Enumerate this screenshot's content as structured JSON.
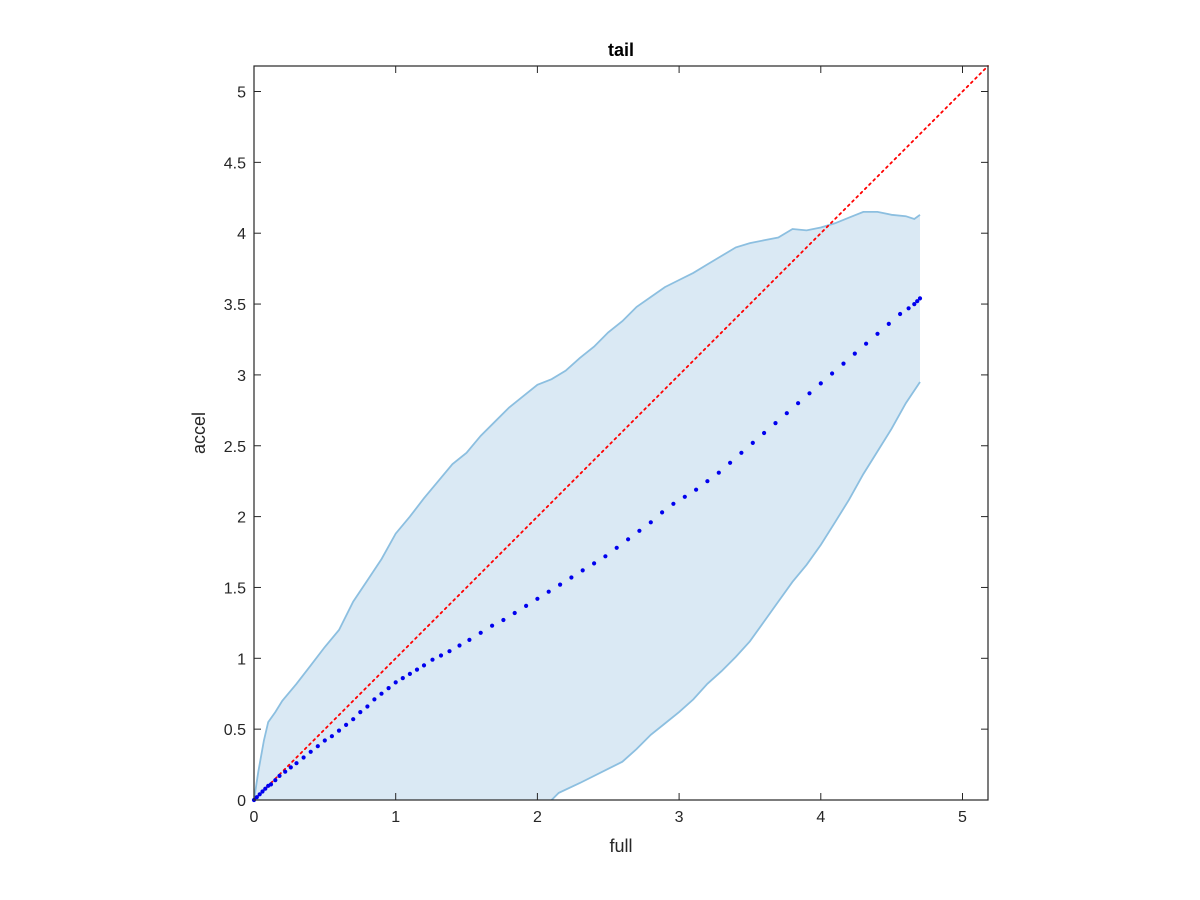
{
  "chart_data": {
    "type": "scatter",
    "title": "tail",
    "xlabel": "full",
    "ylabel": "accel",
    "xlim": [
      0,
      5.18
    ],
    "ylim": [
      0,
      5.18
    ],
    "xticks": [
      0,
      1,
      2,
      3,
      4,
      5
    ],
    "xtick_labels": [
      "0",
      "1",
      "2",
      "3",
      "4",
      "5"
    ],
    "yticks": [
      0,
      0.5,
      1,
      1.5,
      2,
      2.5,
      3,
      3.5,
      4,
      4.5,
      5
    ],
    "ytick_labels": [
      "0",
      "0.5",
      "1",
      "1.5",
      "2",
      "2.5",
      "3",
      "3.5",
      "4",
      "4.5",
      "5"
    ],
    "grid": false,
    "box": true,
    "colors": {
      "points": "#0000ee",
      "band_fill": "#dae9f4",
      "band_edge": "#8cbfe0",
      "reference_line": "#ff0000",
      "axes": "#262626"
    },
    "reference_line": {
      "x": [
        0,
        5.18
      ],
      "y": [
        0,
        5.18
      ],
      "style": "dotted"
    },
    "band": {
      "upper": [
        [
          0.0,
          0.0
        ],
        [
          0.03,
          0.2
        ],
        [
          0.07,
          0.42
        ],
        [
          0.1,
          0.55
        ],
        [
          0.15,
          0.62
        ],
        [
          0.2,
          0.7
        ],
        [
          0.3,
          0.82
        ],
        [
          0.4,
          0.95
        ],
        [
          0.5,
          1.08
        ],
        [
          0.6,
          1.2
        ],
        [
          0.7,
          1.4
        ],
        [
          0.8,
          1.55
        ],
        [
          0.9,
          1.7
        ],
        [
          1.0,
          1.88
        ],
        [
          1.1,
          2.0
        ],
        [
          1.2,
          2.13
        ],
        [
          1.3,
          2.25
        ],
        [
          1.4,
          2.37
        ],
        [
          1.5,
          2.45
        ],
        [
          1.6,
          2.57
        ],
        [
          1.7,
          2.67
        ],
        [
          1.8,
          2.77
        ],
        [
          1.9,
          2.85
        ],
        [
          2.0,
          2.93
        ],
        [
          2.1,
          2.97
        ],
        [
          2.2,
          3.03
        ],
        [
          2.3,
          3.12
        ],
        [
          2.4,
          3.2
        ],
        [
          2.5,
          3.3
        ],
        [
          2.6,
          3.38
        ],
        [
          2.7,
          3.48
        ],
        [
          2.8,
          3.55
        ],
        [
          2.9,
          3.62
        ],
        [
          3.0,
          3.67
        ],
        [
          3.1,
          3.72
        ],
        [
          3.2,
          3.78
        ],
        [
          3.3,
          3.84
        ],
        [
          3.4,
          3.9
        ],
        [
          3.5,
          3.93
        ],
        [
          3.6,
          3.95
        ],
        [
          3.7,
          3.97
        ],
        [
          3.8,
          4.03
        ],
        [
          3.9,
          4.02
        ],
        [
          4.0,
          4.04
        ],
        [
          4.1,
          4.07
        ],
        [
          4.2,
          4.11
        ],
        [
          4.3,
          4.15
        ],
        [
          4.4,
          4.15
        ],
        [
          4.5,
          4.13
        ],
        [
          4.6,
          4.12
        ],
        [
          4.66,
          4.1
        ],
        [
          4.7,
          4.13
        ]
      ],
      "lower": [
        [
          0.0,
          0.0
        ],
        [
          2.1,
          0.0
        ],
        [
          2.15,
          0.05
        ],
        [
          2.3,
          0.12
        ],
        [
          2.5,
          0.22
        ],
        [
          2.6,
          0.27
        ],
        [
          2.7,
          0.36
        ],
        [
          2.8,
          0.46
        ],
        [
          2.9,
          0.54
        ],
        [
          3.0,
          0.62
        ],
        [
          3.1,
          0.71
        ],
        [
          3.2,
          0.82
        ],
        [
          3.3,
          0.91
        ],
        [
          3.4,
          1.01
        ],
        [
          3.5,
          1.12
        ],
        [
          3.6,
          1.26
        ],
        [
          3.7,
          1.4
        ],
        [
          3.8,
          1.54
        ],
        [
          3.9,
          1.66
        ],
        [
          4.0,
          1.8
        ],
        [
          4.1,
          1.96
        ],
        [
          4.2,
          2.12
        ],
        [
          4.3,
          2.3
        ],
        [
          4.4,
          2.46
        ],
        [
          4.5,
          2.62
        ],
        [
          4.6,
          2.8
        ],
        [
          4.7,
          2.95
        ]
      ]
    },
    "series": [
      {
        "x": [
          0.0,
          0.02,
          0.04,
          0.06,
          0.08,
          0.1,
          0.12,
          0.15,
          0.18,
          0.22,
          0.26,
          0.3,
          0.35,
          0.4,
          0.45,
          0.5,
          0.55,
          0.6,
          0.65,
          0.7,
          0.75,
          0.8,
          0.85,
          0.9,
          0.95,
          1.0,
          1.05,
          1.1,
          1.15,
          1.2,
          1.26,
          1.32,
          1.38,
          1.45,
          1.52,
          1.6,
          1.68,
          1.76,
          1.84,
          1.92,
          2.0,
          2.08,
          2.16,
          2.24,
          2.32,
          2.4,
          2.48,
          2.56,
          2.64,
          2.72,
          2.8,
          2.88,
          2.96,
          3.04,
          3.12,
          3.2,
          3.28,
          3.36,
          3.44,
          3.52,
          3.6,
          3.68,
          3.76,
          3.84,
          3.92,
          4.0,
          4.08,
          4.16,
          4.24,
          4.32,
          4.4,
          4.48,
          4.56,
          4.62,
          4.66,
          4.68,
          4.7
        ],
        "y": [
          0.0,
          0.02,
          0.04,
          0.06,
          0.08,
          0.1,
          0.11,
          0.14,
          0.17,
          0.2,
          0.23,
          0.26,
          0.3,
          0.34,
          0.38,
          0.42,
          0.45,
          0.49,
          0.53,
          0.57,
          0.62,
          0.66,
          0.71,
          0.75,
          0.79,
          0.83,
          0.86,
          0.89,
          0.92,
          0.95,
          0.99,
          1.02,
          1.05,
          1.09,
          1.13,
          1.18,
          1.23,
          1.27,
          1.32,
          1.37,
          1.42,
          1.47,
          1.52,
          1.57,
          1.62,
          1.67,
          1.72,
          1.78,
          1.84,
          1.9,
          1.96,
          2.03,
          2.09,
          2.14,
          2.19,
          2.25,
          2.31,
          2.38,
          2.45,
          2.52,
          2.59,
          2.66,
          2.73,
          2.8,
          2.87,
          2.94,
          3.01,
          3.08,
          3.15,
          3.22,
          3.29,
          3.36,
          3.43,
          3.47,
          3.5,
          3.52,
          3.54
        ]
      }
    ]
  }
}
